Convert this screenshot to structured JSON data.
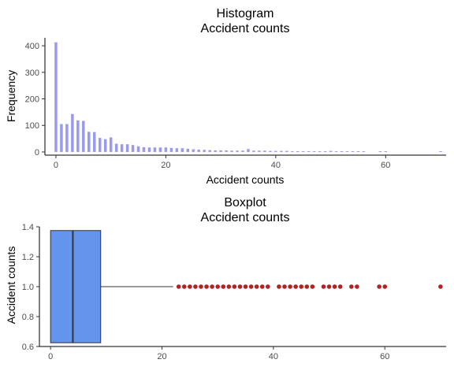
{
  "chart_data": [
    {
      "type": "bar",
      "title_line1": "Histogram",
      "title_line2": "Accident counts",
      "xlabel": "Accident counts",
      "ylabel": "Frequency",
      "xlim": [
        -2,
        71
      ],
      "ylim": [
        -12,
        430
      ],
      "xticks": [
        0,
        20,
        40,
        60
      ],
      "yticks": [
        0,
        100,
        200,
        300,
        400
      ],
      "bar_color": "#9999EE",
      "grid": false,
      "series": [
        {
          "x": [
            0,
            1,
            2,
            3,
            4,
            5,
            6,
            7,
            8,
            9,
            10,
            11,
            12,
            13,
            14,
            15,
            16,
            17,
            18,
            19,
            20,
            21,
            22,
            23,
            24,
            25,
            26,
            27,
            28,
            29,
            30,
            31,
            32,
            33,
            34,
            35,
            36,
            37,
            38,
            39,
            40,
            41,
            42,
            43,
            44,
            45,
            46,
            47,
            48,
            49,
            50,
            51,
            52,
            53,
            54,
            55,
            56,
            59,
            60,
            70
          ],
          "values": [
            413,
            105,
            105,
            143,
            119,
            117,
            76,
            75,
            53,
            48,
            55,
            31,
            29,
            29,
            26,
            21,
            18,
            17,
            17,
            17,
            17,
            15,
            14,
            14,
            12,
            10,
            9,
            8,
            7,
            6,
            6,
            6,
            5,
            5,
            5,
            11,
            5,
            5,
            5,
            4,
            4,
            4,
            4,
            3,
            3,
            3,
            3,
            3,
            3,
            3,
            4,
            3,
            3,
            3,
            3,
            3,
            3,
            3,
            3,
            3
          ]
        }
      ]
    },
    {
      "type": "boxplot",
      "title_line1": "Boxplot",
      "title_line2": "Accident counts",
      "xlabel": "",
      "ylabel": "Accident counts",
      "xlim": [
        -2,
        71
      ],
      "ylim": [
        0.6,
        1.4
      ],
      "xticks": [
        0,
        20,
        40,
        60
      ],
      "yticks": [
        0.6,
        0.8,
        1.0,
        1.2,
        1.4
      ],
      "box_color": "#6495ED",
      "outlier_color": "#B22222",
      "y_center": 1.0,
      "box_ymin": 0.625,
      "box_ymax": 1.375,
      "q1": 0,
      "median": 4,
      "q3": 9,
      "whisker_low": 0,
      "whisker_high": 22,
      "outliers": [
        23,
        24,
        25,
        26,
        27,
        28,
        29,
        30,
        31,
        32,
        33,
        34,
        35,
        36,
        37,
        38,
        39,
        41,
        42,
        43,
        44,
        45,
        46,
        47,
        49,
        50,
        51,
        52,
        54,
        55,
        59,
        60,
        70
      ]
    }
  ]
}
